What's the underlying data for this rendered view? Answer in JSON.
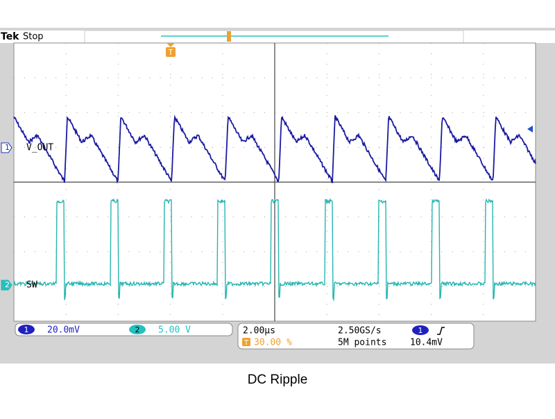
{
  "header": {
    "brand": "Tek",
    "status": "Stop"
  },
  "trigger_marker": "T",
  "channels": [
    {
      "number": "1",
      "label": "V_OUT",
      "scale": "20.0mV"
    },
    {
      "number": "2",
      "label": "SW",
      "scale": "5.00 V"
    }
  ],
  "timebase": {
    "scale": "2.00µs",
    "sample_rate": "2.50GS/s",
    "position_icon": "T",
    "position": "30.00 %",
    "record_length": "5M points",
    "trigger_channel": "1",
    "trigger_level": "10.4mV"
  },
  "caption": "DC Ripple"
}
